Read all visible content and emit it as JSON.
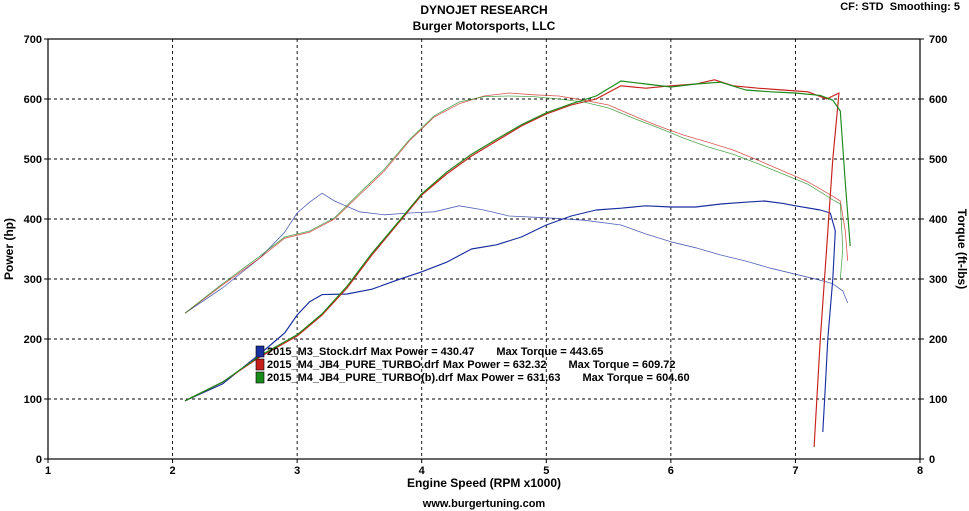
{
  "header": {
    "title": "DYNOJET RESEARCH",
    "subtitle": "Burger Motorsports, LLC",
    "corner": "CF: STD  Smoothing: 5"
  },
  "footer": {
    "url": "www.burgertuning.com"
  },
  "colors": {
    "stock": "#1a2fa0",
    "turbo": "#c8201a",
    "turbo_b": "#1a8a1a",
    "grid": "#000000"
  },
  "chart_data": {
    "type": "line",
    "xlabel": "Engine Speed (RPM x1000)",
    "ylabel": "Power (hp)",
    "y2label": "Torque (ft-lbs)",
    "xlim": [
      1,
      8
    ],
    "ylim": [
      0,
      700
    ],
    "y2lim": [
      0,
      700
    ],
    "x_ticks": [
      "1",
      "2",
      "3",
      "4",
      "5",
      "6",
      "7",
      "8"
    ],
    "y_ticks": [
      "0",
      "100",
      "200",
      "300",
      "400",
      "500",
      "600",
      "700"
    ],
    "y2_ticks": [
      "0",
      "100",
      "200",
      "300",
      "400",
      "500",
      "600",
      "700"
    ],
    "grid": true,
    "legend_position": "lower-left",
    "legend": [
      {
        "file": "2015_M3_Stock.drf",
        "power_label": "Max Power = 430.47",
        "torque_label": "Max Torque = 443.65"
      },
      {
        "file": "2015_M4_JB4_PURE_TURBO.drf",
        "power_label": "Max Power = 632.32",
        "torque_label": "Max Torque = 609.72"
      },
      {
        "file": "2015_M4_JB4_PURE_TURBO(b).drf",
        "power_label": "Max Power = 631.63",
        "torque_label": "Max Torque = 604.60"
      }
    ],
    "series": [
      {
        "name": "2015_M3_Stock.drf",
        "metric": "power",
        "color": "#1a2fa0",
        "points": [
          [
            2.1,
            97
          ],
          [
            2.4,
            125
          ],
          [
            2.7,
            175
          ],
          [
            2.9,
            210
          ],
          [
            3.0,
            240
          ],
          [
            3.1,
            262
          ],
          [
            3.2,
            274
          ],
          [
            3.4,
            275
          ],
          [
            3.6,
            283
          ],
          [
            3.8,
            298
          ],
          [
            4.0,
            312
          ],
          [
            4.2,
            328
          ],
          [
            4.4,
            350
          ],
          [
            4.6,
            357
          ],
          [
            4.8,
            370
          ],
          [
            5.0,
            390
          ],
          [
            5.2,
            405
          ],
          [
            5.4,
            415
          ],
          [
            5.6,
            418
          ],
          [
            5.8,
            422
          ],
          [
            6.0,
            420
          ],
          [
            6.2,
            420
          ],
          [
            6.4,
            425
          ],
          [
            6.6,
            428
          ],
          [
            6.75,
            430
          ],
          [
            6.9,
            426
          ],
          [
            7.0,
            422
          ],
          [
            7.2,
            415
          ],
          [
            7.28,
            410
          ],
          [
            7.32,
            380
          ],
          [
            7.3,
            300
          ],
          [
            7.26,
            200
          ],
          [
            7.24,
            120
          ],
          [
            7.22,
            45
          ]
        ]
      },
      {
        "name": "2015_M3_Stock.drf",
        "metric": "torque",
        "color": "#1a2fa0",
        "points": [
          [
            2.1,
            243
          ],
          [
            2.4,
            285
          ],
          [
            2.7,
            335
          ],
          [
            2.9,
            378
          ],
          [
            3.0,
            410
          ],
          [
            3.1,
            428
          ],
          [
            3.2,
            443
          ],
          [
            3.3,
            430
          ],
          [
            3.5,
            412
          ],
          [
            3.7,
            407
          ],
          [
            3.9,
            410
          ],
          [
            4.1,
            412
          ],
          [
            4.3,
            422
          ],
          [
            4.5,
            415
          ],
          [
            4.7,
            405
          ],
          [
            5.0,
            402
          ],
          [
            5.3,
            398
          ],
          [
            5.6,
            390
          ],
          [
            5.8,
            375
          ],
          [
            6.0,
            362
          ],
          [
            6.2,
            352
          ],
          [
            6.4,
            340
          ],
          [
            6.6,
            330
          ],
          [
            6.8,
            318
          ],
          [
            7.0,
            308
          ],
          [
            7.2,
            298
          ],
          [
            7.3,
            292
          ],
          [
            7.38,
            280
          ],
          [
            7.42,
            260
          ]
        ]
      },
      {
        "name": "2015_M4_JB4_PURE_TURBO.drf",
        "metric": "power",
        "color": "#c8201a",
        "points": [
          [
            2.1,
            97
          ],
          [
            2.4,
            128
          ],
          [
            2.7,
            170
          ],
          [
            3.0,
            205
          ],
          [
            3.2,
            240
          ],
          [
            3.4,
            285
          ],
          [
            3.6,
            340
          ],
          [
            3.8,
            390
          ],
          [
            4.0,
            440
          ],
          [
            4.2,
            475
          ],
          [
            4.4,
            505
          ],
          [
            4.6,
            530
          ],
          [
            4.8,
            555
          ],
          [
            5.0,
            575
          ],
          [
            5.2,
            590
          ],
          [
            5.4,
            600
          ],
          [
            5.6,
            622
          ],
          [
            5.8,
            618
          ],
          [
            6.0,
            622
          ],
          [
            6.2,
            625
          ],
          [
            6.35,
            632
          ],
          [
            6.5,
            622
          ],
          [
            6.7,
            618
          ],
          [
            6.9,
            615
          ],
          [
            7.1,
            612
          ],
          [
            7.25,
            600
          ],
          [
            7.35,
            610
          ],
          [
            7.3,
            500
          ],
          [
            7.25,
            350
          ],
          [
            7.2,
            200
          ],
          [
            7.15,
            20
          ]
        ]
      },
      {
        "name": "2015_M4_JB4_PURE_TURBO.drf",
        "metric": "torque",
        "color": "#c8201a",
        "points": [
          [
            2.1,
            243
          ],
          [
            2.4,
            290
          ],
          [
            2.7,
            335
          ],
          [
            2.9,
            368
          ],
          [
            3.1,
            378
          ],
          [
            3.3,
            400
          ],
          [
            3.5,
            440
          ],
          [
            3.7,
            480
          ],
          [
            3.9,
            530
          ],
          [
            4.1,
            570
          ],
          [
            4.3,
            592
          ],
          [
            4.5,
            605
          ],
          [
            4.7,
            610
          ],
          [
            4.9,
            607
          ],
          [
            5.1,
            605
          ],
          [
            5.3,
            598
          ],
          [
            5.5,
            590
          ],
          [
            5.7,
            572
          ],
          [
            5.9,
            555
          ],
          [
            6.1,
            540
          ],
          [
            6.3,
            528
          ],
          [
            6.5,
            515
          ],
          [
            6.7,
            498
          ],
          [
            6.9,
            480
          ],
          [
            7.1,
            462
          ],
          [
            7.3,
            438
          ],
          [
            7.36,
            430
          ],
          [
            7.4,
            380
          ],
          [
            7.42,
            330
          ]
        ]
      },
      {
        "name": "2015_M4_JB4_PURE_TURBO(b).drf",
        "metric": "power",
        "color": "#1a8a1a",
        "points": [
          [
            2.1,
            97
          ],
          [
            2.4,
            128
          ],
          [
            2.7,
            172
          ],
          [
            3.0,
            207
          ],
          [
            3.2,
            242
          ],
          [
            3.4,
            288
          ],
          [
            3.6,
            343
          ],
          [
            3.8,
            392
          ],
          [
            4.0,
            442
          ],
          [
            4.2,
            478
          ],
          [
            4.4,
            508
          ],
          [
            4.6,
            533
          ],
          [
            4.8,
            557
          ],
          [
            5.0,
            577
          ],
          [
            5.2,
            592
          ],
          [
            5.4,
            605
          ],
          [
            5.6,
            630
          ],
          [
            5.8,
            625
          ],
          [
            6.0,
            620
          ],
          [
            6.2,
            625
          ],
          [
            6.4,
            628
          ],
          [
            6.6,
            615
          ],
          [
            6.8,
            612
          ],
          [
            7.0,
            610
          ],
          [
            7.2,
            606
          ],
          [
            7.3,
            598
          ],
          [
            7.36,
            580
          ],
          [
            7.4,
            460
          ],
          [
            7.44,
            355
          ]
        ]
      },
      {
        "name": "2015_M4_JB4_PURE_TURBO(b).drf",
        "metric": "torque",
        "color": "#1a8a1a",
        "points": [
          [
            2.1,
            243
          ],
          [
            2.4,
            292
          ],
          [
            2.7,
            338
          ],
          [
            2.9,
            370
          ],
          [
            3.1,
            380
          ],
          [
            3.3,
            402
          ],
          [
            3.5,
            443
          ],
          [
            3.7,
            483
          ],
          [
            3.9,
            532
          ],
          [
            4.1,
            572
          ],
          [
            4.3,
            595
          ],
          [
            4.5,
            604
          ],
          [
            4.7,
            605
          ],
          [
            4.9,
            604
          ],
          [
            5.1,
            600
          ],
          [
            5.3,
            595
          ],
          [
            5.5,
            585
          ],
          [
            5.7,
            568
          ],
          [
            5.9,
            552
          ],
          [
            6.1,
            535
          ],
          [
            6.3,
            520
          ],
          [
            6.5,
            508
          ],
          [
            6.7,
            492
          ],
          [
            6.9,
            475
          ],
          [
            7.1,
            458
          ],
          [
            7.3,
            432
          ],
          [
            7.36,
            425
          ],
          [
            7.38,
            350
          ],
          [
            7.36,
            300
          ]
        ]
      }
    ]
  }
}
